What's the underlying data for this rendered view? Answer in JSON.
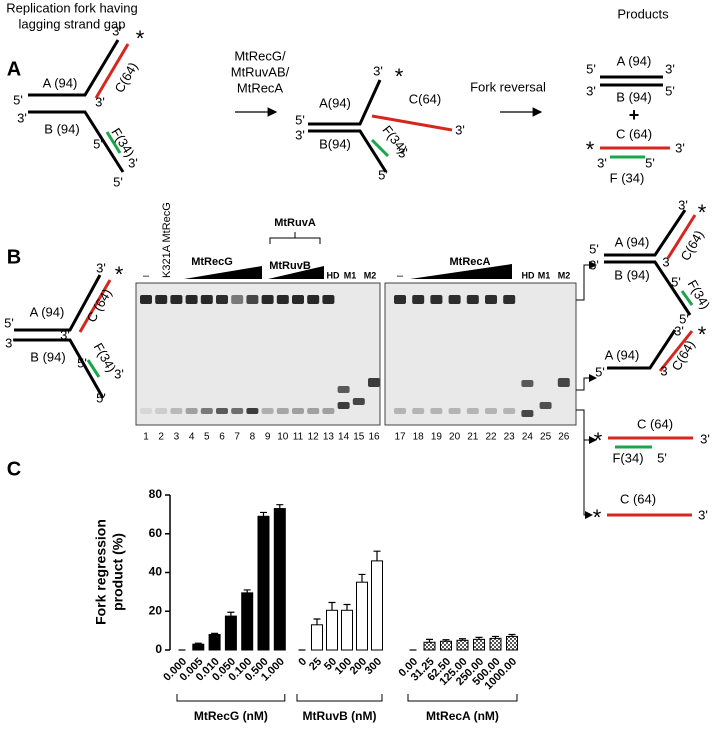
{
  "figure": {
    "panel_labels": [
      "A",
      "B",
      "C"
    ]
  },
  "panel_a": {
    "title": [
      "Replication fork having",
      "lagging strand gap"
    ],
    "products_title": "Products",
    "substrate": [
      "3'",
      "*",
      "A (94)",
      "C(64)",
      "5'",
      "3'",
      "3'",
      "B (94)",
      "F(34)",
      "5'",
      "3'",
      "5'"
    ],
    "enzymes": [
      "MtRecG/",
      "MtRuvAB/",
      "MtRecA"
    ],
    "intermediate": [
      "3'",
      "*",
      "A(94)",
      "C(64)",
      "3'",
      "5'",
      "3'",
      "B(94)",
      "F(34)",
      "3'",
      "5'"
    ],
    "step": "Fork reversal",
    "products": [
      "5'",
      "A (94)",
      "3'",
      "3'",
      "B (94)",
      "5'",
      "+",
      "C (64)",
      "*",
      "3'",
      "3'",
      "5'",
      "F (34)"
    ]
  },
  "panel_b": {
    "substrate": [
      "3'",
      "*",
      "A (94)",
      "C (64)",
      "5'",
      "3'",
      "3'",
      "B (94)",
      "F(34)",
      "5'",
      "3'",
      "5'"
    ],
    "gel1": [
      "–",
      "K321A MtRecG",
      "MtRecG",
      "MtRuvA",
      "MtRuvB",
      "HD",
      "M1",
      "M2"
    ],
    "gel2": [
      "–",
      "MtRecA",
      "HD",
      "M1",
      "M2"
    ],
    "lanes": [
      "1",
      "2",
      "3",
      "4",
      "5",
      "6",
      "7",
      "8",
      "9",
      "10",
      "11",
      "12",
      "13",
      "14",
      "15",
      "16",
      "17",
      "18",
      "19",
      "20",
      "21",
      "22",
      "23",
      "24",
      "25",
      "26"
    ],
    "product_fork": [
      "3'",
      "*",
      "A (94)",
      "C(64)",
      "5'",
      "3",
      "3'",
      "B (94)",
      "5'",
      "F(34)",
      "5'"
    ],
    "product_flap": [
      "A (94)",
      "5'",
      "3",
      "C(64)",
      "3'",
      "*"
    ],
    "product_duplex": [
      "C (64)",
      "*",
      "3'",
      "F(34)",
      "5'"
    ],
    "product_single": [
      "C (64)",
      "*",
      "3'"
    ]
  },
  "chart_data": {
    "type": "bar",
    "ylabel": [
      "Fork regression",
      "product (%)"
    ],
    "ylim": [
      0,
      80
    ],
    "yticks": [
      0,
      20,
      40,
      60,
      80
    ],
    "series": [
      {
        "name": "MtRecG (nM)",
        "color": "#000000",
        "fill": "solid",
        "categories": [
          "0.000",
          "0.005",
          "0.010",
          "0.050",
          "0.100",
          "0.500",
          "1.000"
        ],
        "values": [
          0,
          3,
          8,
          17.5,
          29.5,
          69,
          73
        ],
        "errors": [
          0,
          0.5,
          0.6,
          2,
          1.5,
          2,
          2
        ]
      },
      {
        "name": "MtRuvB (nM)",
        "color": "#000000",
        "fill": "open",
        "categories": [
          "0",
          "25",
          "50",
          "100",
          "200",
          "300"
        ],
        "values": [
          0,
          13,
          20.5,
          20.5,
          35,
          46
        ],
        "errors": [
          0,
          3,
          4,
          3,
          4,
          5
        ]
      },
      {
        "name": "MtRecA (nM)",
        "color": "#555555",
        "fill": "checkered",
        "categories": [
          "0.00",
          "31.25",
          "62.50",
          "125.00",
          "250.00",
          "500.00",
          "1000.00"
        ],
        "values": [
          0,
          4,
          4.5,
          5,
          5.5,
          6,
          7
        ],
        "errors": [
          0,
          1.5,
          0.8,
          0.8,
          1,
          1,
          1
        ]
      }
    ]
  }
}
